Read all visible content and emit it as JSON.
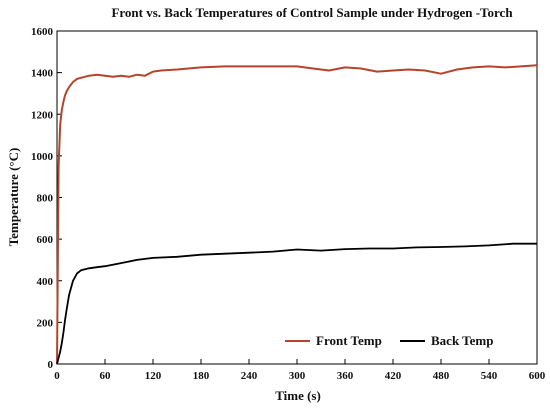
{
  "chart_data": {
    "type": "line",
    "title": "Front vs. Back Temperatures of Control Sample under Hydrogen -Torch",
    "xlabel": "Time (s)",
    "ylabel": "Temperature (°C)",
    "xlim": [
      0,
      600
    ],
    "ylim": [
      0,
      1600
    ],
    "xticks": [
      "0",
      "60",
      "120",
      "180",
      "240",
      "300",
      "360",
      "420",
      "480",
      "540",
      "600"
    ],
    "yticks": [
      "0",
      "200",
      "400",
      "600",
      "800",
      "1000",
      "1200",
      "1400",
      "1600"
    ],
    "grid": false,
    "legend_position": "bottom-right",
    "series": [
      {
        "name": "Front Temp",
        "color": "#b5442a",
        "x": [
          0,
          2,
          4,
          6,
          8,
          10,
          12,
          15,
          20,
          25,
          30,
          40,
          50,
          60,
          70,
          80,
          90,
          100,
          110,
          120,
          130,
          150,
          180,
          210,
          240,
          270,
          300,
          320,
          340,
          360,
          380,
          400,
          420,
          440,
          460,
          480,
          500,
          520,
          540,
          560,
          580,
          600
        ],
        "values": [
          0,
          950,
          1150,
          1220,
          1260,
          1290,
          1310,
          1330,
          1355,
          1370,
          1375,
          1385,
          1390,
          1385,
          1380,
          1385,
          1380,
          1390,
          1385,
          1405,
          1410,
          1415,
          1425,
          1430,
          1430,
          1430,
          1430,
          1420,
          1410,
          1425,
          1420,
          1405,
          1410,
          1415,
          1410,
          1395,
          1415,
          1425,
          1430,
          1425,
          1430,
          1435
        ]
      },
      {
        "name": "Back Temp",
        "color": "#000000",
        "x": [
          0,
          2,
          4,
          6,
          8,
          10,
          12,
          15,
          20,
          25,
          30,
          40,
          50,
          60,
          80,
          100,
          120,
          150,
          180,
          210,
          240,
          270,
          300,
          330,
          360,
          390,
          420,
          450,
          480,
          510,
          540,
          570,
          600
        ],
        "values": [
          0,
          30,
          60,
          100,
          150,
          210,
          260,
          330,
          400,
          435,
          450,
          460,
          465,
          470,
          485,
          500,
          510,
          515,
          525,
          530,
          535,
          540,
          550,
          545,
          552,
          555,
          555,
          560,
          562,
          565,
          570,
          578,
          578
        ]
      }
    ]
  }
}
